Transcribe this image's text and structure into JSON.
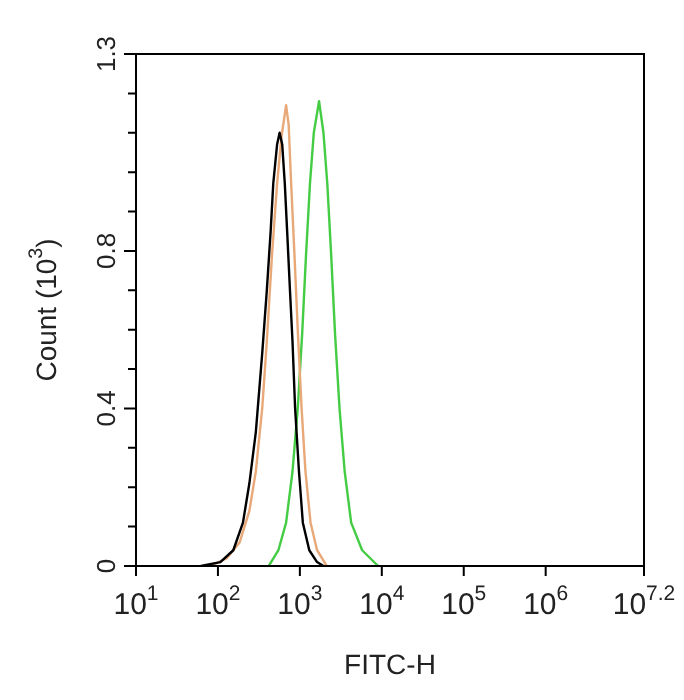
{
  "chart_data": {
    "type": "line",
    "xlabel": "FITC-H",
    "ylabel": "Count (10$^{3}$)",
    "log": "x",
    "xlim": [
      10,
      15848932
    ],
    "xticks": [
      {
        "value": 10,
        "label": "10$^{1}$"
      },
      {
        "value": 100,
        "label": "10$^{2}$"
      },
      {
        "value": 1000,
        "label": "10$^{3}$"
      },
      {
        "value": 10000,
        "label": "10$^{4}$"
      },
      {
        "value": 100000,
        "label": "10$^{5}$"
      },
      {
        "value": 1000000,
        "label": "10$^{6}$"
      },
      {
        "value": 15848932,
        "label": "10$^{7.2}$"
      }
    ],
    "ylim": [
      0,
      1.3
    ],
    "yticks": [
      0,
      {
        "value": 0.1,
        "label": null
      },
      {
        "value": 0.2,
        "label": null
      },
      {
        "value": 0.3,
        "label": null
      },
      0.4,
      {
        "value": 0.5,
        "label": null
      },
      {
        "value": 0.6,
        "label": null
      },
      {
        "value": 0.7,
        "label": null
      },
      0.8,
      {
        "value": 0.9,
        "label": null
      },
      {
        "value": 1.0,
        "label": null
      },
      {
        "value": 1.1,
        "label": null
      },
      {
        "value": 1.2,
        "label": null
      },
      1.3
    ],
    "grid": false,
    "legend": false,
    "marker": "none",
    "line_style": "solid",
    "series": [
      {
        "color": "#000000",
        "x": [
          62,
          107,
          154,
          202,
          242,
          290,
          347,
          395,
          440,
          473,
          527,
          566,
          609,
          655,
          703,
          757,
          813,
          875,
          975,
          1087,
          1303,
          1622,
          1941
        ],
        "values": [
          0,
          0.01,
          0.04,
          0.11,
          0.21,
          0.34,
          0.54,
          0.7,
          0.85,
          0.97,
          1.07,
          1.1,
          1.07,
          0.97,
          0.84,
          0.7,
          0.57,
          0.4,
          0.24,
          0.11,
          0.04,
          0.01,
          0
        ]
      },
      {
        "color": "#e8a878",
        "x": [
          82,
          128,
          184,
          242,
          290,
          347,
          395,
          457,
          527,
          597,
          679,
          730,
          783,
          859,
          942,
          1050,
          1170,
          1350,
          1622,
          2128
        ],
        "values": [
          0,
          0.02,
          0.06,
          0.14,
          0.24,
          0.4,
          0.57,
          0.79,
          0.97,
          1.09,
          1.17,
          1.12,
          0.97,
          0.79,
          0.6,
          0.4,
          0.24,
          0.11,
          0.04,
          0
        ]
      },
      {
        "color": "#44cc44",
        "x": [
          417,
          547,
          679,
          813,
          942,
          1067,
          1189,
          1327,
          1479,
          1714,
          1941,
          2163,
          2410,
          2686,
          3048,
          3524,
          4227,
          5754,
          9016
        ],
        "values": [
          0,
          0.04,
          0.11,
          0.24,
          0.4,
          0.59,
          0.79,
          0.97,
          1.1,
          1.18,
          1.1,
          0.97,
          0.79,
          0.59,
          0.4,
          0.24,
          0.11,
          0.04,
          0
        ]
      }
    ]
  }
}
